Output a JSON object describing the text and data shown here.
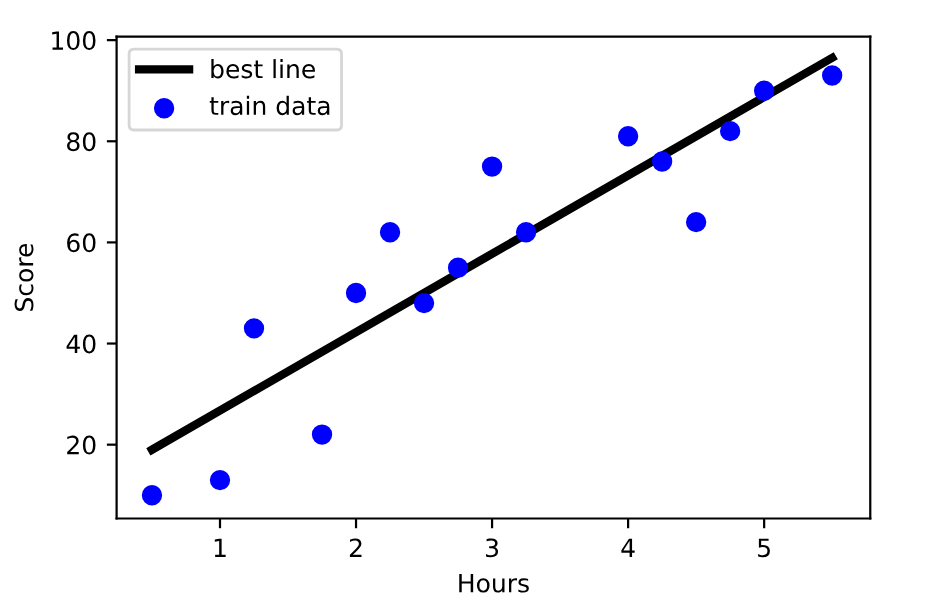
{
  "chart_data": {
    "type": "scatter",
    "xlabel": "Hours",
    "ylabel": "Score",
    "xlim": [
      0.24,
      5.78
    ],
    "ylim": [
      5.4,
      100.7
    ],
    "xticks": [
      1,
      2,
      3,
      4,
      5
    ],
    "yticks": [
      20,
      40,
      60,
      80,
      100
    ],
    "grid": false,
    "legend": "top left",
    "series": [
      {
        "name": "best line",
        "type": "line",
        "color": "#000000",
        "marker": "none",
        "x": [
          0.5,
          5.5
        ],
        "values": [
          19,
          96.5
        ]
      },
      {
        "name": "train data",
        "color": "#0000ff",
        "marker": "circle",
        "x": [
          0.5,
          1,
          1.25,
          1.75,
          2,
          2.25,
          2.5,
          2.75,
          3,
          3.25,
          4,
          4.25,
          4.5,
          4.75,
          5,
          5.5
        ],
        "values": [
          10,
          13,
          43,
          22,
          50,
          62,
          48,
          55,
          75,
          62,
          81,
          76,
          64,
          82,
          90,
          93
        ]
      }
    ]
  }
}
